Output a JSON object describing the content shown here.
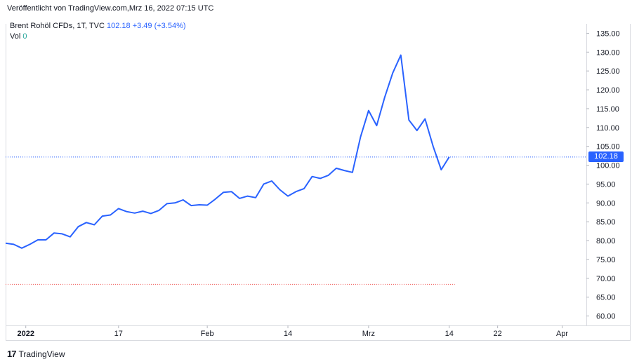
{
  "header": {
    "published": "Veröffentlicht von TradingView.com,Mrz 16, 2022 07:15 UTC"
  },
  "legend": {
    "symbol": "Brent Rohöl CFDs, 1T, TVC",
    "price": "102.18",
    "change": "+3.49 (+3.54%)",
    "vol_label": "Vol",
    "vol_value": "0"
  },
  "price_label": "102.18",
  "brand": {
    "logo": "17",
    "name": "TradingView"
  },
  "colors": {
    "line": "#2962ff",
    "price_line": "#2962ff",
    "lower_line": "#ef5350"
  },
  "chart_data": {
    "type": "line",
    "title": "",
    "ylim": [
      57.5,
      137.5
    ],
    "y_ticks": [
      60,
      65,
      70,
      75,
      80,
      85,
      90,
      95,
      100,
      105,
      110,
      115,
      120,
      125,
      130,
      135
    ],
    "y_tick_labels": [
      "60.00",
      "65.00",
      "70.00",
      "75.00",
      "80.00",
      "85.00",
      "90.00",
      "95.00",
      "100.00",
      "105.00",
      "110.00",
      "115.00",
      "120.00",
      "125.00",
      "130.00",
      "135.00"
    ],
    "x_tick_labels": [
      {
        "label": "2022",
        "bold": true,
        "i": 2.5
      },
      {
        "label": "17",
        "bold": false,
        "i": 14
      },
      {
        "label": "Feb",
        "bold": false,
        "i": 25
      },
      {
        "label": "14",
        "bold": false,
        "i": 35
      },
      {
        "label": "Mrz",
        "bold": false,
        "i": 45
      },
      {
        "label": "14",
        "bold": false,
        "i": 55
      },
      {
        "label": "22",
        "bold": false,
        "i": 61
      },
      {
        "label": "Apr",
        "bold": false,
        "i": 69
      }
    ],
    "x_index_range": [
      0,
      72
    ],
    "series": [
      {
        "values": [
          79.3,
          79.0,
          78.0,
          79.0,
          80.2,
          80.2,
          82.0,
          81.8,
          81.0,
          83.7,
          84.8,
          84.2,
          86.5,
          86.8,
          88.5,
          87.7,
          87.3,
          87.8,
          87.2,
          88.0,
          89.8,
          90.0,
          90.8,
          89.3,
          89.5,
          89.4,
          91.0,
          92.8,
          93.0,
          91.2,
          91.8,
          91.4,
          95.0,
          95.8,
          93.5,
          91.8,
          93.0,
          93.8,
          97.0,
          96.5,
          97.3,
          99.2,
          98.6,
          98.1,
          107.5,
          114.5,
          110.5,
          118.0,
          124.5,
          129.2,
          112.0,
          109.2,
          112.3,
          105.0,
          98.8,
          102.18
        ]
      }
    ],
    "current_price": 102.18,
    "lower_reference": 68.4
  }
}
